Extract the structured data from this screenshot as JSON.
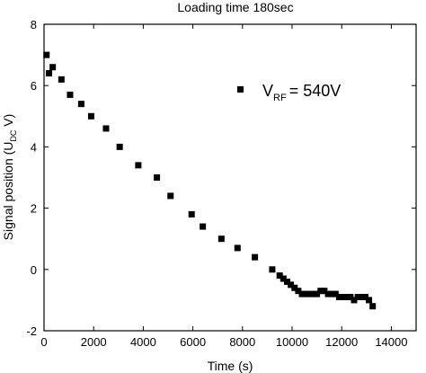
{
  "chart_data": {
    "type": "scatter",
    "title": "Loading time 180sec",
    "xlabel": "Time (s)",
    "ylabel": {
      "main": "Signal position (U",
      "sub": "DC",
      "tail": " V)"
    },
    "xlim": [
      0,
      15000
    ],
    "ylim": [
      -2,
      8
    ],
    "x_ticks": [
      0,
      2000,
      4000,
      6000,
      8000,
      10000,
      12000,
      14000
    ],
    "y_ticks": [
      -2,
      0,
      2,
      4,
      6,
      8
    ],
    "grid": false,
    "legend": {
      "position": "top-right",
      "label_main": "V",
      "label_sub": "RF",
      "label_tail": "= 540V"
    },
    "marker": "square",
    "series": [
      {
        "x": [
          100,
          200,
          350,
          700,
          1050,
          1500,
          1900,
          2500,
          3050,
          3800,
          4550,
          5100,
          5950,
          6400,
          7150,
          7800,
          8500,
          9200,
          9500,
          9650,
          9800,
          9950,
          10100,
          10250,
          10400,
          10550,
          10700,
          10850,
          11000,
          11150,
          11300,
          11450,
          11600,
          11750,
          11900,
          12050,
          12200,
          12350,
          12500,
          12650,
          12800,
          12950,
          13100,
          13250
        ],
        "y": [
          7.0,
          6.4,
          6.6,
          6.2,
          5.7,
          5.4,
          5.0,
          4.6,
          4.0,
          3.4,
          3.0,
          2.4,
          1.8,
          1.4,
          1.0,
          0.7,
          0.4,
          0.0,
          -0.2,
          -0.3,
          -0.4,
          -0.5,
          -0.6,
          -0.7,
          -0.8,
          -0.8,
          -0.8,
          -0.8,
          -0.8,
          -0.7,
          -0.7,
          -0.8,
          -0.8,
          -0.8,
          -0.9,
          -0.9,
          -0.9,
          -0.9,
          -1.0,
          -0.9,
          -0.9,
          -0.9,
          -1.0,
          -1.2
        ]
      }
    ]
  }
}
